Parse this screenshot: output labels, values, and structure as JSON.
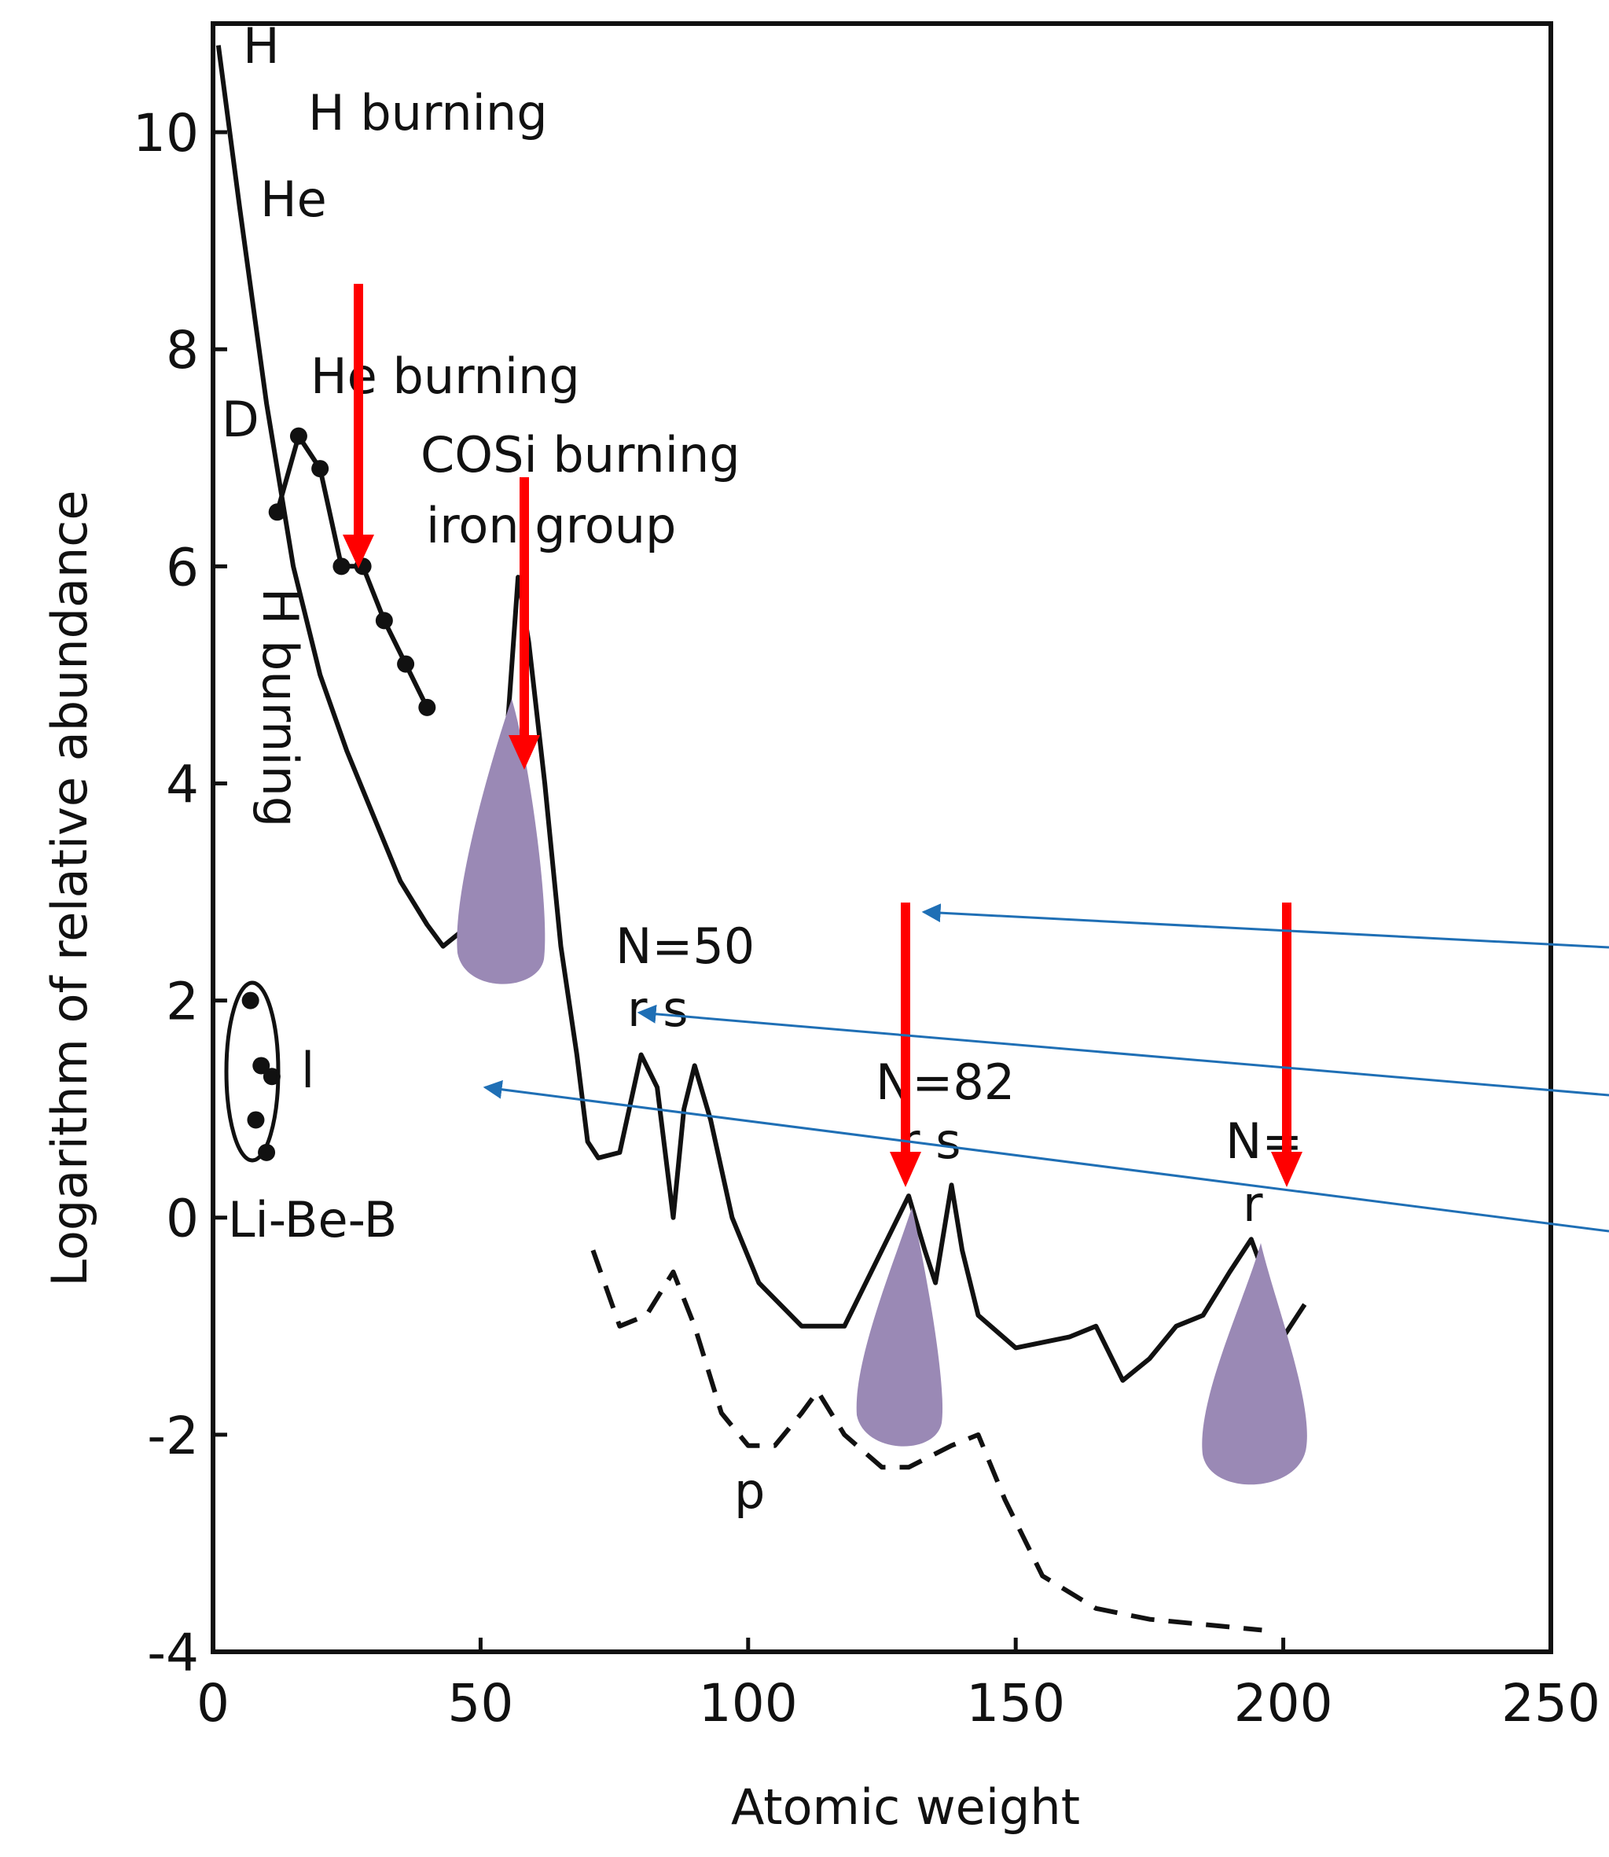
{
  "chart_data": {
    "type": "line",
    "xlabel": "Atomic weight",
    "ylabel": "Logarithm of relative abundance",
    "xlim": [
      0,
      250
    ],
    "ylim": [
      -4,
      11
    ],
    "xticks": [
      0,
      50,
      100,
      150,
      200,
      250
    ],
    "yticks": [
      -4,
      -2,
      0,
      2,
      4,
      6,
      8,
      10
    ],
    "series": [
      {
        "color": "#111111",
        "style": "solid",
        "markers": false,
        "x": [
          1,
          5,
          10,
          15,
          20,
          25,
          30,
          35,
          40,
          43,
          48,
          52,
          55,
          57,
          59,
          62,
          65,
          68,
          70,
          72,
          76,
          80,
          83,
          86,
          88,
          90,
          93,
          97,
          102,
          110,
          118,
          125,
          130,
          133,
          135,
          138,
          140,
          143,
          150,
          160,
          165,
          170,
          175,
          180,
          185,
          190,
          194,
          197,
          200,
          204
        ],
        "values": [
          10.8,
          9.3,
          7.5,
          6,
          5,
          4.3,
          3.7,
          3.1,
          2.7,
          2.5,
          2.7,
          3.3,
          4.5,
          5.9,
          5.3,
          4,
          2.5,
          1.5,
          0.7,
          0.55,
          0.6,
          1.5,
          1.2,
          0,
          1,
          1.4,
          0.9,
          0,
          -0.6,
          -1,
          -1,
          -0.3,
          0.2,
          -0.3,
          -0.6,
          0.3,
          -0.3,
          -0.9,
          -1.2,
          -1.1,
          -1,
          -1.5,
          -1.3,
          -1,
          -0.9,
          -0.5,
          -0.2,
          -0.6,
          -1.1,
          -0.8
        ]
      },
      {
        "color": "#111111",
        "style": "solid",
        "markers": true,
        "x": [
          12,
          16,
          20,
          24,
          28,
          32,
          36,
          40
        ],
        "values": [
          6.5,
          7.2,
          6.9,
          6,
          6,
          5.5,
          5.1,
          4.7
        ]
      },
      {
        "color": "#111111",
        "style": "dashed",
        "markers": false,
        "x": [
          71,
          76,
          81,
          86,
          90,
          95,
          100,
          105,
          110,
          113,
          118,
          125,
          130,
          138,
          143,
          148,
          155,
          165,
          175,
          196
        ],
        "values": [
          -0.3,
          -1,
          -0.9,
          -0.5,
          -1,
          -1.8,
          -2.1,
          -2.1,
          -1.8,
          -1.6,
          -2,
          -2.3,
          -2.3,
          -2.1,
          -2,
          -2.6,
          -3.3,
          -3.6,
          -3.7,
          -3.8
        ]
      },
      {
        "color": "#111111",
        "style": "none",
        "markers": true,
        "x": [
          7,
          8,
          9,
          11,
          10
        ],
        "values": [
          2,
          0.9,
          1.4,
          1.3,
          0.6
        ]
      }
    ],
    "annotations": [
      "H",
      "H burning",
      "He",
      "He burning",
      "D",
      "COSi burning",
      "iron group",
      "H burning",
      "N=50",
      "r s",
      "N=82",
      "r s",
      "N=",
      "r",
      "l",
      "Li-Be-B",
      "p"
    ]
  }
}
